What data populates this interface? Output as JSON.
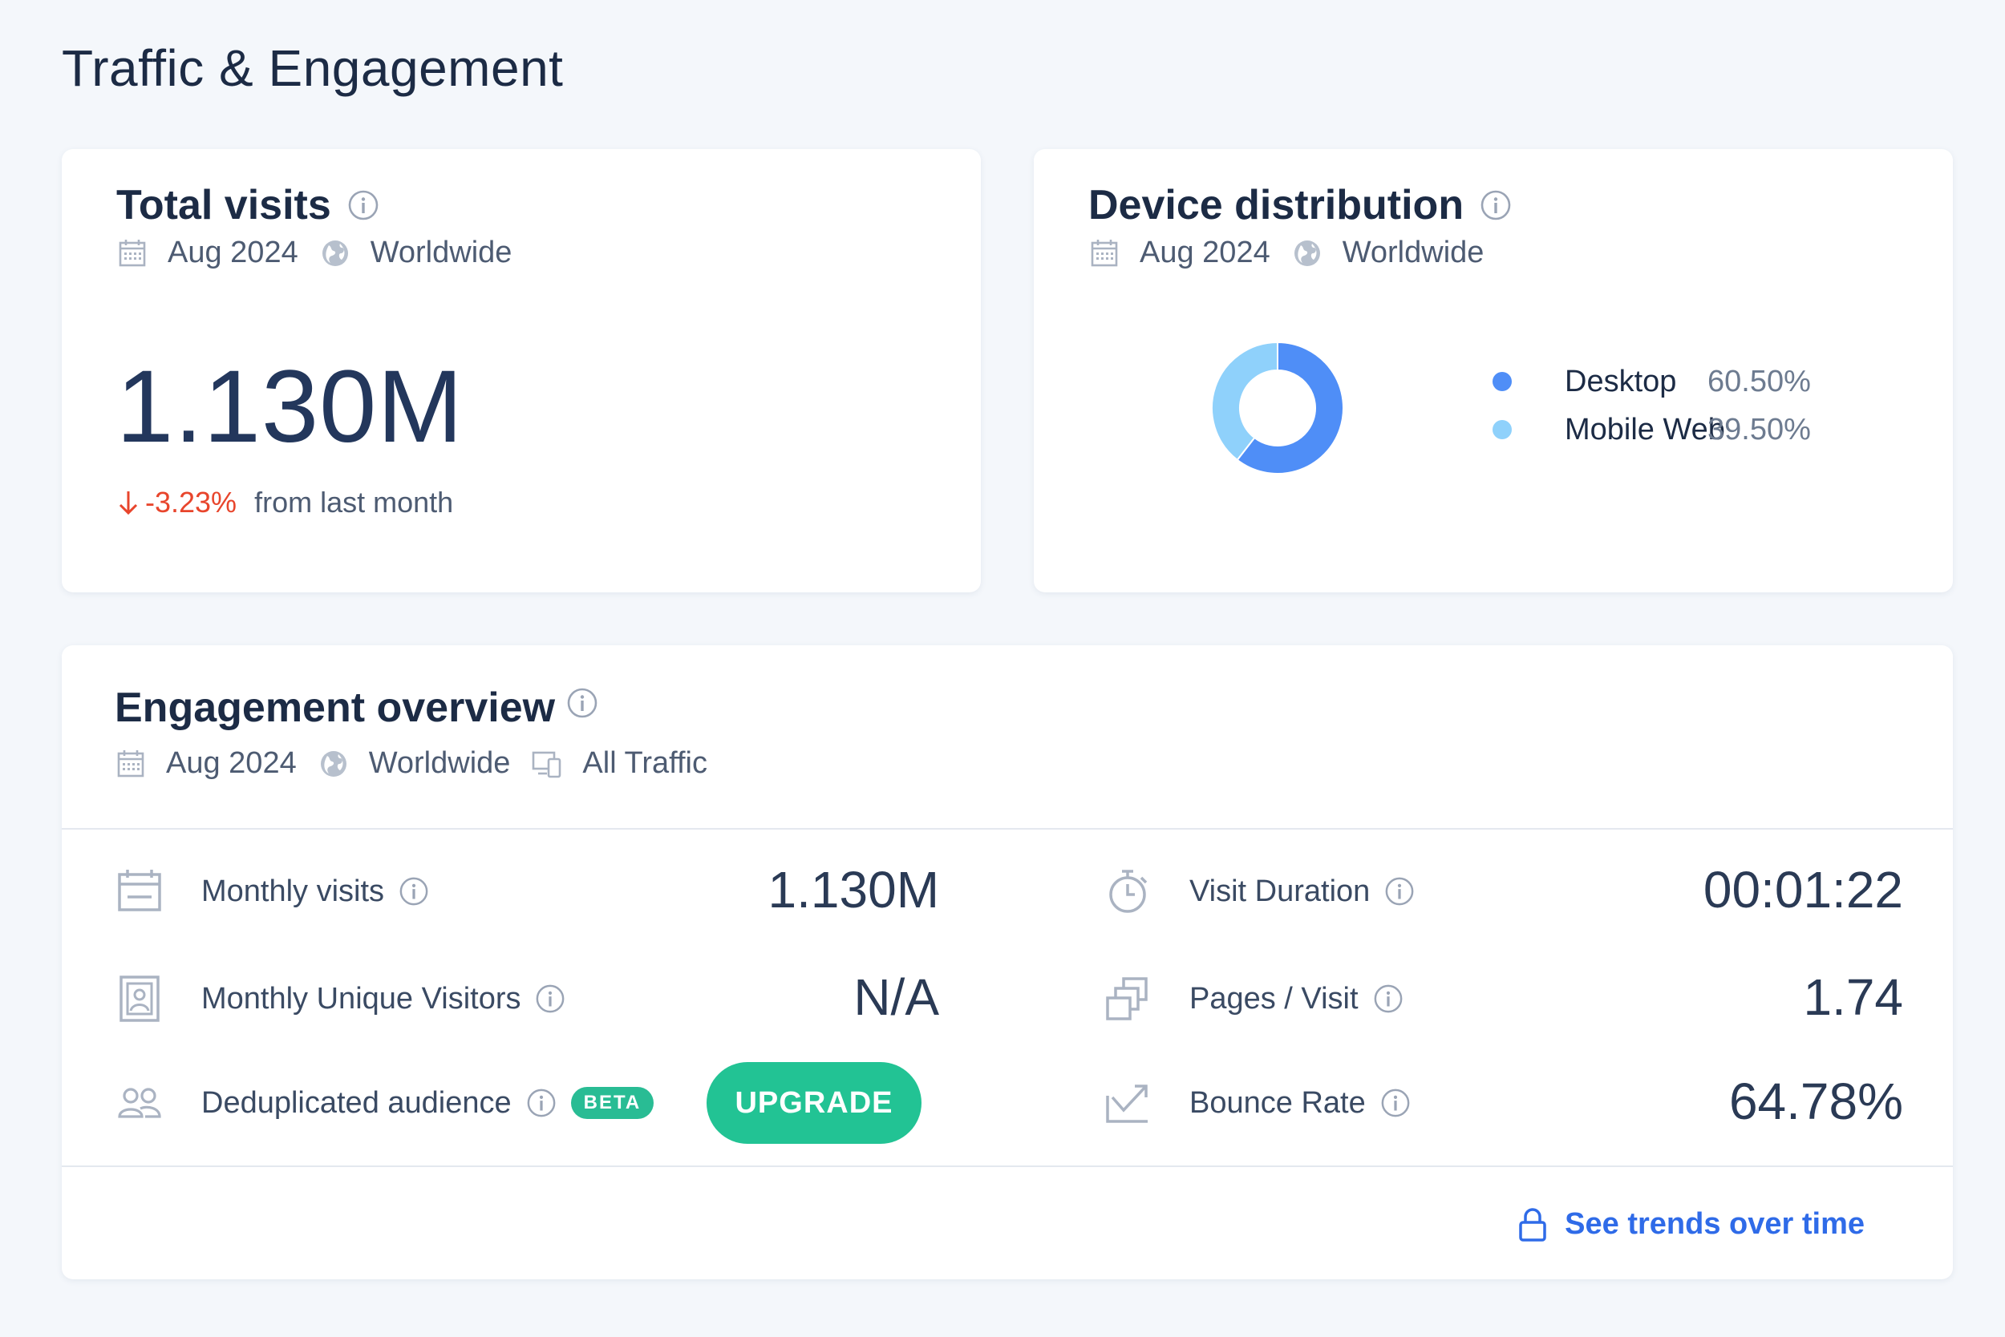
{
  "page": {
    "title": "Traffic & Engagement"
  },
  "total_visits": {
    "title": "Total visits",
    "date": "Aug 2024",
    "region": "Worldwide",
    "value": "1.130M",
    "change": "-3.23%",
    "change_suffix": "from last month"
  },
  "device_distribution": {
    "title": "Device distribution",
    "date": "Aug 2024",
    "region": "Worldwide",
    "items": [
      {
        "label": "Desktop",
        "value": "60.50%",
        "share": 60.5,
        "color": "#4f8ef7"
      },
      {
        "label": "Mobile Web",
        "value": "39.50%",
        "share": 39.5,
        "color": "#8fd1fb"
      }
    ]
  },
  "engagement": {
    "title": "Engagement overview",
    "date": "Aug 2024",
    "region": "Worldwide",
    "traffic": "All Traffic",
    "left_metrics": [
      {
        "label": "Monthly visits",
        "value": "1.130M",
        "icon": "calendar-icon"
      },
      {
        "label": "Monthly Unique Visitors",
        "value": "N/A",
        "icon": "id-card-icon"
      },
      {
        "label": "Deduplicated audience",
        "badge": "BETA",
        "icon": "people-icon"
      }
    ],
    "upgrade_label": "UPGRADE",
    "right_metrics": [
      {
        "label": "Visit Duration",
        "value": "00:01:22",
        "icon": "stopwatch-icon"
      },
      {
        "label": "Pages / Visit",
        "value": "1.74",
        "icon": "pages-icon"
      },
      {
        "label": "Bounce Rate",
        "value": "64.78%",
        "icon": "bounce-icon"
      }
    ],
    "trends_label": "See trends over time"
  },
  "colors": {
    "accent": "#2f6be8",
    "negative": "#e8452c",
    "upgrade": "#22c394",
    "desktop": "#4f8ef7",
    "mobile": "#8fd1fb"
  }
}
